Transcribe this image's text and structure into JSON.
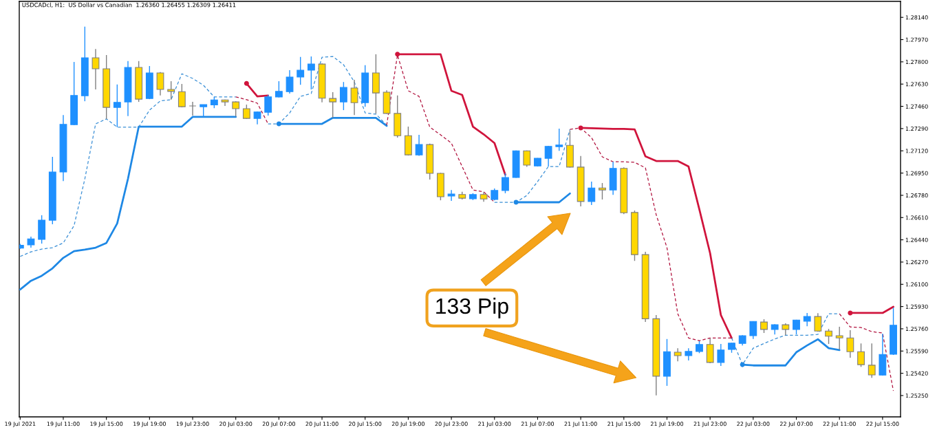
{
  "chart_data": {
    "type": "candlestick",
    "title": "USDCADcl, H1:  US Dollar vs Canadian  1.26360 1.26455 1.26309 1.26411",
    "x": [
      "2021-07-19T07:00",
      "2021-07-19T08:00",
      "2021-07-19T09:00",
      "2021-07-19T10:00",
      "2021-07-19T11:00",
      "2021-07-19T12:00",
      "2021-07-19T13:00",
      "2021-07-19T14:00",
      "2021-07-19T15:00",
      "2021-07-19T16:00",
      "2021-07-19T17:00",
      "2021-07-19T18:00",
      "2021-07-19T19:00",
      "2021-07-19T20:00",
      "2021-07-19T21:00",
      "2021-07-19T22:00",
      "2021-07-19T23:00",
      "2021-07-20T00:00",
      "2021-07-20T01:00",
      "2021-07-20T02:00",
      "2021-07-20T03:00",
      "2021-07-20T04:00",
      "2021-07-20T05:00",
      "2021-07-20T06:00",
      "2021-07-20T07:00",
      "2021-07-20T08:00",
      "2021-07-20T09:00",
      "2021-07-20T10:00",
      "2021-07-20T11:00",
      "2021-07-20T12:00",
      "2021-07-20T13:00",
      "2021-07-20T14:00",
      "2021-07-20T15:00",
      "2021-07-20T16:00",
      "2021-07-20T17:00",
      "2021-07-20T18:00",
      "2021-07-20T19:00",
      "2021-07-20T20:00",
      "2021-07-20T21:00",
      "2021-07-20T22:00",
      "2021-07-20T23:00",
      "2021-07-21T00:00",
      "2021-07-21T01:00",
      "2021-07-21T02:00",
      "2021-07-21T03:00",
      "2021-07-21T04:00",
      "2021-07-21T05:00",
      "2021-07-21T06:00",
      "2021-07-21T07:00",
      "2021-07-21T08:00",
      "2021-07-21T09:00",
      "2021-07-21T10:00",
      "2021-07-21T11:00",
      "2021-07-21T12:00",
      "2021-07-21T13:00",
      "2021-07-21T14:00",
      "2021-07-21T15:00",
      "2021-07-21T16:00",
      "2021-07-21T17:00",
      "2021-07-21T18:00",
      "2021-07-21T19:00",
      "2021-07-21T20:00",
      "2021-07-21T21:00",
      "2021-07-21T22:00",
      "2021-07-21T23:00",
      "2021-07-22T00:00",
      "2021-07-22T01:00",
      "2021-07-22T02:00",
      "2021-07-22T03:00",
      "2021-07-22T04:00",
      "2021-07-22T05:00",
      "2021-07-22T06:00",
      "2021-07-22T07:00",
      "2021-07-22T08:00",
      "2021-07-22T09:00",
      "2021-07-22T10:00",
      "2021-07-22T11:00",
      "2021-07-22T12:00",
      "2021-07-22T13:00",
      "2021-07-22T14:00",
      "2021-07-22T15:00",
      "2021-07-22T16:00"
    ],
    "ohlc": [
      [
        1.26376,
        1.26409,
        1.26371,
        1.26398
      ],
      [
        1.26401,
        1.26464,
        1.2638,
        1.26447
      ],
      [
        1.26443,
        1.26628,
        1.26411,
        1.2659
      ],
      [
        1.2659,
        1.27074,
        1.26559,
        1.26958
      ],
      [
        1.26958,
        1.27393,
        1.26889,
        1.27322
      ],
      [
        1.2732,
        1.27799,
        1.27316,
        1.27543
      ],
      [
        1.27541,
        1.28069,
        1.27499,
        1.27831
      ],
      [
        1.27831,
        1.27898,
        1.27589,
        1.27747
      ],
      [
        1.27747,
        1.27852,
        1.27364,
        1.27452
      ],
      [
        1.27452,
        1.27627,
        1.27301,
        1.2749
      ],
      [
        1.27494,
        1.27806,
        1.27385,
        1.27757
      ],
      [
        1.27757,
        1.27806,
        1.27494,
        1.27515
      ],
      [
        1.2752,
        1.27768,
        1.27515,
        1.27715
      ],
      [
        1.27715,
        1.27722,
        1.27543,
        1.27589
      ],
      [
        1.27589,
        1.27652,
        1.27511,
        1.27574
      ],
      [
        1.27572,
        1.27631,
        1.27452,
        1.27457
      ],
      [
        1.27463,
        1.27494,
        1.27389,
        1.27463
      ],
      [
        1.27457,
        1.27473,
        1.27379,
        1.27473
      ],
      [
        1.27471,
        1.27532,
        1.27446,
        1.27509
      ],
      [
        1.27509,
        1.27511,
        1.27463,
        1.27494
      ],
      [
        1.27494,
        1.27499,
        1.27383,
        1.27442
      ],
      [
        1.27442,
        1.27473,
        1.27364,
        1.27368
      ],
      [
        1.27368,
        1.27421,
        1.27322,
        1.27417
      ],
      [
        1.27415,
        1.27547,
        1.27389,
        1.27532
      ],
      [
        1.27532,
        1.27652,
        1.27528,
        1.27574
      ],
      [
        1.27572,
        1.27736,
        1.27558,
        1.27684
      ],
      [
        1.27684,
        1.27837,
        1.27625,
        1.27736
      ],
      [
        1.27736,
        1.27841,
        1.27589,
        1.27783
      ],
      [
        1.27783,
        1.27789,
        1.2749,
        1.27522
      ],
      [
        1.2752,
        1.27568,
        1.27372,
        1.27494
      ],
      [
        1.27494,
        1.27646,
        1.27431,
        1.27604
      ],
      [
        1.276,
        1.27663,
        1.27393,
        1.27488
      ],
      [
        1.27488,
        1.27774,
        1.27457,
        1.27715
      ],
      [
        1.27715,
        1.27858,
        1.27404,
        1.27562
      ],
      [
        1.27568,
        1.27583,
        1.27402,
        1.27406
      ],
      [
        1.27406,
        1.27543,
        1.27221,
        1.27236
      ],
      [
        1.27236,
        1.27305,
        1.27084,
        1.27089
      ],
      [
        1.27089,
        1.27242,
        1.27082,
        1.27168
      ],
      [
        1.27168,
        1.27175,
        1.26901,
        1.26948
      ],
      [
        1.26948,
        1.26952,
        1.26742,
        1.26769
      ],
      [
        1.26775,
        1.26821,
        1.26737,
        1.2679
      ],
      [
        1.26786,
        1.26807,
        1.26748,
        1.26758
      ],
      [
        1.26754,
        1.26796,
        1.26744,
        1.26786
      ],
      [
        1.26786,
        1.26805,
        1.26731,
        1.26752
      ],
      [
        1.26748,
        1.26832,
        1.26742,
        1.26817
      ],
      [
        1.26817,
        1.26948,
        1.26796,
        1.26916
      ],
      [
        1.26916,
        1.27122,
        1.26914,
        1.2712
      ],
      [
        1.2712,
        1.27122,
        1.26998,
        1.27011
      ],
      [
        1.27004,
        1.27065,
        1.27,
        1.27063
      ],
      [
        1.27063,
        1.27158,
        1.27,
        1.27154
      ],
      [
        1.27152,
        1.2729,
        1.2712,
        1.27164
      ],
      [
        1.27162,
        1.27274,
        1.26992,
        1.26996
      ],
      [
        1.26996,
        1.2708,
        1.26695,
        1.26733
      ],
      [
        1.26733,
        1.26885,
        1.26706,
        1.26836
      ],
      [
        1.26836,
        1.26874,
        1.26748,
        1.26821
      ],
      [
        1.26821,
        1.27036,
        1.26784,
        1.26986
      ],
      [
        1.26986,
        1.26994,
        1.26636,
        1.26647
      ],
      [
        1.26649,
        1.26664,
        1.26279,
        1.26327
      ],
      [
        1.26327,
        1.26348,
        1.25812,
        1.25837
      ],
      [
        1.25837,
        1.25865,
        1.25251,
        1.25398
      ],
      [
        1.25398,
        1.25682,
        1.25324,
        1.25585
      ],
      [
        1.25581,
        1.25612,
        1.25511,
        1.25555
      ],
      [
        1.25555,
        1.25612,
        1.25518,
        1.25587
      ],
      [
        1.25587,
        1.25665,
        1.25574,
        1.2564
      ],
      [
        1.2564,
        1.25686,
        1.25497,
        1.25503
      ],
      [
        1.25503,
        1.25644,
        1.25476,
        1.25598
      ],
      [
        1.25602,
        1.25654,
        1.25577,
        1.2565
      ],
      [
        1.25648,
        1.25711,
        1.25633,
        1.25707
      ],
      [
        1.25707,
        1.25818,
        1.25682,
        1.25816
      ],
      [
        1.25812,
        1.25833,
        1.25728,
        1.25755
      ],
      [
        1.25755,
        1.25795,
        1.25717,
        1.25791
      ],
      [
        1.25791,
        1.25802,
        1.25711,
        1.25755
      ],
      [
        1.25755,
        1.25829,
        1.25717,
        1.25827
      ],
      [
        1.25818,
        1.25881,
        1.2578,
        1.25854
      ],
      [
        1.25854,
        1.25879,
        1.25738,
        1.25743
      ],
      [
        1.25743,
        1.25759,
        1.25644,
        1.25703
      ],
      [
        1.25707,
        1.25776,
        1.25602,
        1.2569
      ],
      [
        1.2569,
        1.25749,
        1.25539,
        1.25585
      ],
      [
        1.25585,
        1.25648,
        1.25469,
        1.25486
      ],
      [
        1.25482,
        1.25648,
        1.25385,
        1.25408
      ],
      [
        1.25406,
        1.25722,
        1.25402,
        1.25564
      ],
      [
        1.25566,
        1.25921,
        1.2556,
        1.25787
      ]
    ],
    "colors": [
      "#1e90ff",
      "#1e90ff",
      "#1e90ff",
      "#1e90ff",
      "#1e90ff",
      "#1e90ff",
      "#1e90ff",
      "#ffd700",
      "#ffd700",
      "#1e90ff",
      "#1e90ff",
      "#ffd700",
      "#1e90ff",
      "#ffd700",
      "#ffd700",
      "#ffd700",
      "#808080",
      "#1e90ff",
      "#1e90ff",
      "#ffd700",
      "#ffd700",
      "#ffd700",
      "#1e90ff",
      "#1e90ff",
      "#1e90ff",
      "#1e90ff",
      "#1e90ff",
      "#1e90ff",
      "#ffd700",
      "#ffd700",
      "#1e90ff",
      "#ffd700",
      "#1e90ff",
      "#ffd700",
      "#ffd700",
      "#ffd700",
      "#ffd700",
      "#1e90ff",
      "#ffd700",
      "#ffd700",
      "#1e90ff",
      "#ffd700",
      "#1e90ff",
      "#ffd700",
      "#1e90ff",
      "#1e90ff",
      "#1e90ff",
      "#ffd700",
      "#1e90ff",
      "#1e90ff",
      "#1e90ff",
      "#ffd700",
      "#ffd700",
      "#1e90ff",
      "#ffd700",
      "#1e90ff",
      "#ffd700",
      "#ffd700",
      "#ffd700",
      "#ffd700",
      "#1e90ff",
      "#ffd700",
      "#1e90ff",
      "#1e90ff",
      "#ffd700",
      "#1e90ff",
      "#1e90ff",
      "#1e90ff",
      "#1e90ff",
      "#ffd700",
      "#1e90ff",
      "#ffd700",
      "#1e90ff",
      "#1e90ff",
      "#ffd700",
      "#ffd700",
      "#ffd700",
      "#ffd700",
      "#ffd700",
      "#ffd700",
      "#1e90ff",
      "#1e90ff"
    ],
    "xlim": [
      "2021-07-19T06:55",
      "2021-07-22T16:40"
    ],
    "xticks": [
      {
        "value": "2021-07-19T07:00",
        "label": "19 Jul 2021"
      },
      {
        "value": "2021-07-19T11:00",
        "label": "19 Jul 11:00"
      },
      {
        "value": "2021-07-19T15:00",
        "label": "19 Jul 15:00"
      },
      {
        "value": "2021-07-19T19:00",
        "label": "19 Jul 19:00"
      },
      {
        "value": "2021-07-19T23:00",
        "label": "19 Jul 23:00"
      },
      {
        "value": "2021-07-20T03:00",
        "label": "20 Jul 03:00"
      },
      {
        "value": "2021-07-20T07:00",
        "label": "20 Jul 07:00"
      },
      {
        "value": "2021-07-20T11:00",
        "label": "20 Jul 11:00"
      },
      {
        "value": "2021-07-20T15:00",
        "label": "20 Jul 15:00"
      },
      {
        "value": "2021-07-20T19:00",
        "label": "20 Jul 19:00"
      },
      {
        "value": "2021-07-20T23:00",
        "label": "20 Jul 23:00"
      },
      {
        "value": "2021-07-21T03:00",
        "label": "21 Jul 03:00"
      },
      {
        "value": "2021-07-21T07:00",
        "label": "21 Jul 07:00"
      },
      {
        "value": "2021-07-21T11:00",
        "label": "21 Jul 11:00"
      },
      {
        "value": "2021-07-21T15:00",
        "label": "21 Jul 15:00"
      },
      {
        "value": "2021-07-21T19:00",
        "label": "21 Jul 19:00"
      },
      {
        "value": "2021-07-21T23:00",
        "label": "21 Jul 23:00"
      },
      {
        "value": "2021-07-22T03:00",
        "label": "22 Jul 03:00"
      },
      {
        "value": "2021-07-22T07:00",
        "label": "22 Jul 07:00"
      },
      {
        "value": "2021-07-22T11:00",
        "label": "22 Jul 11:00"
      },
      {
        "value": "2021-07-22T15:00",
        "label": "22 Jul 15:00"
      }
    ],
    "ylim": [
      1.25087,
      1.28262
    ],
    "yticks": [
      {
        "value": 1.2525,
        "label": "1.25250"
      },
      {
        "value": 1.2542,
        "label": "1.25420"
      },
      {
        "value": 1.2559,
        "label": "1.25590"
      },
      {
        "value": 1.2576,
        "label": "1.25760"
      },
      {
        "value": 1.2593,
        "label": "1.25930"
      },
      {
        "value": 1.261,
        "label": "1.26100"
      },
      {
        "value": 1.2627,
        "label": "1.26270"
      },
      {
        "value": 1.2644,
        "label": "1.26440"
      },
      {
        "value": 1.2661,
        "label": "1.26610"
      },
      {
        "value": 1.2678,
        "label": "1.26780"
      },
      {
        "value": 1.2695,
        "label": "1.26950"
      },
      {
        "value": 1.2712,
        "label": "1.27120"
      },
      {
        "value": 1.2729,
        "label": "1.27290"
      },
      {
        "value": 1.2746,
        "label": "1.27460"
      },
      {
        "value": 1.2763,
        "label": "1.27630"
      },
      {
        "value": 1.278,
        "label": "1.27800"
      },
      {
        "value": 1.2797,
        "label": "1.27970"
      },
      {
        "value": 1.2814,
        "label": "1.28140"
      }
    ],
    "grid": false,
    "series": [
      {
        "type": "line",
        "color": "#1e88e5",
        "line_style": "solid",
        "values": [
          1.2606,
          1.26127,
          1.26165,
          1.26222,
          1.26302,
          1.26353,
          1.26365,
          1.2638,
          1.26416,
          1.26565,
          1.26906,
          1.27305,
          1.27305,
          1.27305,
          1.27305,
          1.27305,
          1.27379,
          1.27379,
          1.27379,
          1.27379,
          1.27379,
          null,
          null,
          null,
          1.27326,
          1.27326,
          1.27326,
          1.27326,
          1.27326,
          1.27372,
          1.27372,
          1.27372,
          1.27372,
          1.27372,
          1.27311,
          null,
          null,
          null,
          null,
          null,
          null,
          null,
          null,
          null,
          null,
          null,
          1.26727,
          1.26727,
          1.26727,
          1.26727,
          1.26727,
          1.26794,
          null,
          null,
          null,
          null,
          null,
          null,
          null,
          null,
          null,
          null,
          null,
          null,
          null,
          null,
          null,
          1.25486,
          1.2548,
          1.2548,
          1.2548,
          1.2548,
          1.25581,
          1.25633,
          1.2568,
          1.25612,
          1.25598,
          null,
          null,
          null,
          null,
          null
        ]
      },
      {
        "type": "line",
        "color": "#d0143c",
        "line_style": "solid",
        "values": [
          null,
          null,
          null,
          null,
          null,
          null,
          null,
          null,
          null,
          null,
          null,
          null,
          null,
          null,
          null,
          null,
          null,
          null,
          null,
          null,
          null,
          1.27635,
          1.27536,
          1.27543,
          null,
          null,
          null,
          null,
          null,
          null,
          null,
          null,
          null,
          null,
          null,
          1.27858,
          1.27858,
          1.27858,
          1.27858,
          1.27858,
          1.27579,
          1.27547,
          1.27305,
          1.27246,
          1.27179,
          1.26937,
          null,
          null,
          null,
          null,
          null,
          null,
          1.27295,
          1.27293,
          1.2729,
          1.27288,
          1.27288,
          1.27284,
          1.27078,
          1.27042,
          1.27042,
          1.27042,
          1.27,
          1.26674,
          1.26338,
          1.25865,
          1.2569,
          null,
          null,
          null,
          null,
          null,
          null,
          null,
          null,
          null,
          null,
          1.25881,
          1.25881,
          1.25881,
          1.25881,
          1.25928
        ]
      },
      {
        "type": "line",
        "color": "#3a8fd6",
        "line_style": "dashed",
        "values": [
          1.26313,
          1.26348,
          1.26369,
          1.2638,
          1.26416,
          1.26548,
          1.26906,
          1.27326,
          1.27364,
          1.27301,
          1.27301,
          1.27301,
          1.27431,
          1.27501,
          1.27511,
          1.27709,
          1.27673,
          1.27621,
          1.27532,
          1.27532,
          1.27532,
          null,
          null,
          1.27326,
          1.27326,
          1.2741,
          1.27536,
          1.27558,
          1.27835,
          1.27841,
          1.27778,
          1.27646,
          1.2741,
          1.274,
          1.27316,
          null,
          null,
          null,
          null,
          null,
          null,
          null,
          null,
          null,
          1.26727,
          1.26727,
          1.26727,
          1.26779,
          1.26885,
          1.27,
          1.27,
          1.27284,
          null,
          null,
          null,
          null,
          null,
          null,
          null,
          null,
          null,
          null,
          null,
          null,
          null,
          null,
          1.2569,
          1.25486,
          1.25612,
          1.25648,
          1.25682,
          1.25711,
          1.25711,
          1.25711,
          1.25717,
          1.25875,
          1.25875,
          null,
          null,
          null,
          null,
          null
        ]
      },
      {
        "type": "line",
        "color": "#b0103c",
        "line_style": "dashed",
        "values": [
          null,
          null,
          null,
          null,
          null,
          null,
          null,
          null,
          null,
          null,
          null,
          null,
          null,
          null,
          null,
          null,
          null,
          null,
          null,
          null,
          1.27532,
          1.27511,
          1.27484,
          1.27326,
          null,
          null,
          null,
          null,
          null,
          null,
          null,
          null,
          null,
          null,
          1.27316,
          1.27852,
          1.27579,
          1.27536,
          1.27301,
          1.27242,
          1.27179,
          1.27,
          1.26821,
          1.26807,
          1.26727,
          null,
          null,
          null,
          null,
          null,
          null,
          1.27284,
          1.27295,
          1.27221,
          1.27074,
          1.27036,
          1.27036,
          1.27032,
          1.2699,
          1.26632,
          1.2638,
          1.25875,
          1.2569,
          1.25669,
          1.2569,
          1.2569,
          1.2569,
          null,
          null,
          null,
          null,
          null,
          null,
          null,
          null,
          null,
          1.25875,
          1.25774,
          1.2577,
          1.25738,
          1.25728,
          1.25286
        ]
      },
      {
        "type": "scatter",
        "color": "#1e88e5",
        "marker": "circle",
        "x": [
          "2021-07-20T07:00",
          "2021-07-21T05:00",
          "2021-07-22T02:00"
        ],
        "values": [
          1.27326,
          1.26727,
          1.25486
        ]
      },
      {
        "type": "scatter",
        "color": "#d0143c",
        "marker": "circle",
        "x": [
          "2021-07-20T04:00",
          "2021-07-20T18:00",
          "2021-07-21T11:00",
          "2021-07-22T12:00"
        ],
        "values": [
          1.27635,
          1.27858,
          1.27295,
          1.25881
        ]
      }
    ],
    "annotations": [
      "133 Pip"
    ]
  }
}
